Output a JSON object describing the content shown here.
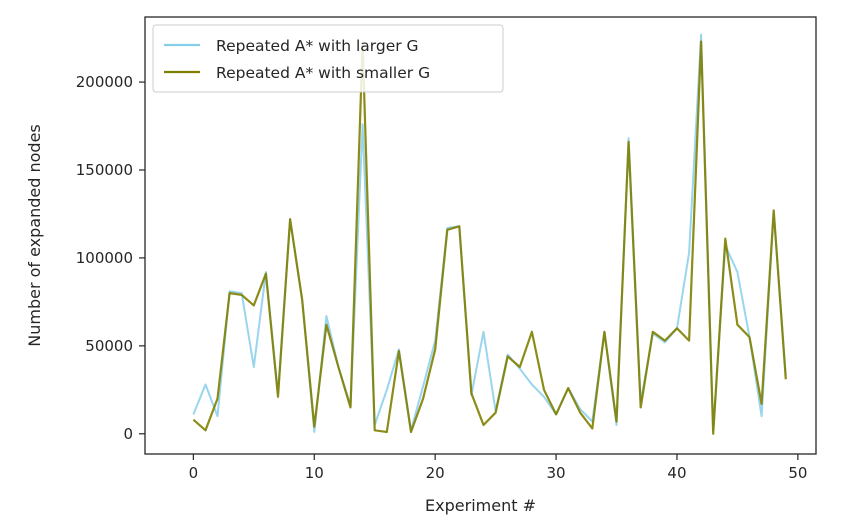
{
  "chart_data": {
    "type": "line",
    "xlabel": "Experiment #",
    "ylabel": "Number of expanded nodes",
    "xlim": [
      -4,
      51.5
    ],
    "ylim": [
      -11500,
      237000
    ],
    "xticks": [
      0,
      10,
      20,
      30,
      40,
      50
    ],
    "yticks": [
      0,
      50000,
      100000,
      150000,
      200000
    ],
    "legend_position": "top-left",
    "grid": false,
    "series": [
      {
        "name": "Repeated A* with larger G",
        "color": "#87ceeb",
        "x": [
          0,
          1,
          2,
          3,
          4,
          5,
          6,
          7,
          8,
          9,
          10,
          11,
          12,
          13,
          14,
          15,
          16,
          17,
          18,
          19,
          20,
          21,
          22,
          23,
          24,
          25,
          26,
          27,
          28,
          29,
          30,
          31,
          32,
          33,
          34,
          35,
          36,
          37,
          38,
          39,
          40,
          41,
          42,
          43,
          44,
          45,
          46,
          47,
          48,
          49
        ],
        "values": [
          11000,
          28000,
          10000,
          81000,
          80000,
          38000,
          92000,
          23000,
          122000,
          76000,
          1000,
          67000,
          38000,
          16000,
          176000,
          5000,
          25000,
          48000,
          2000,
          27000,
          53000,
          117000,
          118000,
          22000,
          58000,
          13000,
          45000,
          37000,
          28000,
          21000,
          11000,
          26000,
          14000,
          7000,
          58000,
          5000,
          168000,
          18000,
          57000,
          52000,
          60000,
          103000,
          227000,
          2000,
          107000,
          92000,
          55000,
          10000,
          126000,
          33000
        ]
      },
      {
        "name": "Repeated A* with smaller G",
        "color": "#808000",
        "x": [
          0,
          1,
          2,
          3,
          4,
          5,
          6,
          7,
          8,
          9,
          10,
          11,
          12,
          13,
          14,
          15,
          16,
          17,
          18,
          19,
          20,
          21,
          22,
          23,
          24,
          25,
          26,
          27,
          28,
          29,
          30,
          31,
          32,
          33,
          34,
          35,
          36,
          37,
          38,
          39,
          40,
          41,
          42,
          43,
          44,
          45,
          46,
          47,
          48,
          49
        ],
        "values": [
          8000,
          2000,
          20000,
          80000,
          79000,
          73000,
          91000,
          21000,
          122000,
          76000,
          4000,
          62000,
          38000,
          15000,
          222000,
          2000,
          1000,
          47000,
          1000,
          20000,
          48000,
          116000,
          118000,
          23000,
          5000,
          12000,
          44000,
          38000,
          58000,
          25000,
          11000,
          26000,
          12000,
          3000,
          58000,
          7000,
          166000,
          15000,
          58000,
          53000,
          60000,
          53000,
          223000,
          0,
          111000,
          62000,
          55000,
          17000,
          127000,
          31000
        ]
      }
    ]
  }
}
